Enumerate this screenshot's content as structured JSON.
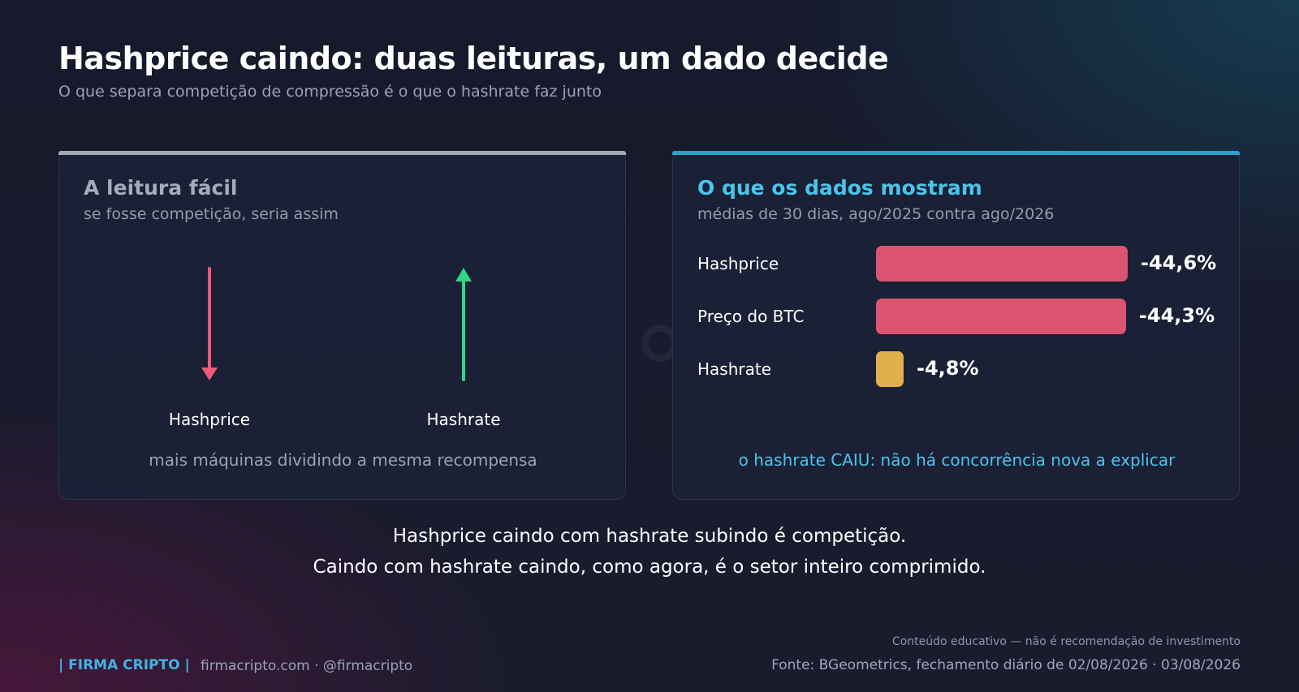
{
  "header": {
    "title": "Hashprice caindo: duas leituras, um dado decide",
    "subtitle": "O que separa competição de compressão é o que o hashrate faz junto"
  },
  "left_card": {
    "title": "A leitura fácil",
    "subtitle": "se fosse competição, seria assim",
    "arrows": [
      {
        "label": "Hashprice",
        "direction": "down",
        "color": "#ef5a78"
      },
      {
        "label": "Hashrate",
        "direction": "up",
        "color": "#2fd68a"
      }
    ],
    "caption": "mais máquinas dividindo a mesma recompensa"
  },
  "right_card": {
    "title": "O que os dados mostram",
    "subtitle": "médias de 30 dias, ago/2025 contra ago/2026",
    "caption": "o hashrate CAIU: não há concorrência nova a explicar"
  },
  "chart_data": {
    "type": "bar",
    "orientation": "horizontal",
    "categories": [
      "Hashprice",
      "Preço do BTC",
      "Hashrate"
    ],
    "values": [
      -44.6,
      -44.3,
      -4.8
    ],
    "value_labels": [
      "-44,6%",
      "-44,3%",
      "-4,8%"
    ],
    "colors": [
      "#db5470",
      "#db5470",
      "#e0b04a"
    ],
    "title": "",
    "xlabel": "",
    "ylabel": ""
  },
  "conclusion": {
    "line1": "Hashprice caindo com hashrate subindo é competição.",
    "line2": "Caindo com hashrate caindo, como agora, é o setor inteiro comprimido."
  },
  "footer": {
    "brand": "| FIRMA CRIPTO |",
    "site": "firmacripto.com  ·  @firmacripto",
    "disclaimer": "Conteúdo educativo — não é recomendação de investimento",
    "source": "Fonte: BGeometrics, fechamento diário de 02/08/2026  ·  03/08/2026"
  }
}
